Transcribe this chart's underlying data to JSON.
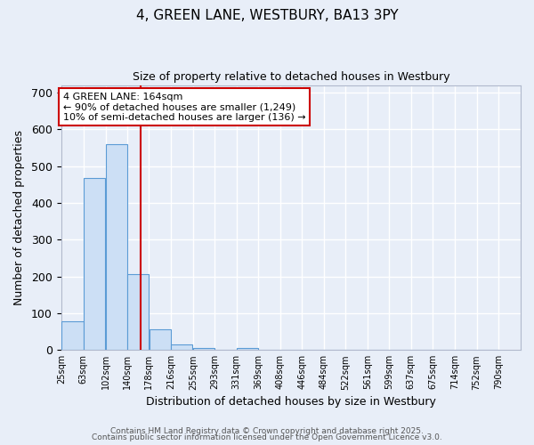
{
  "title": "4, GREEN LANE, WESTBURY, BA13 3PY",
  "subtitle": "Size of property relative to detached houses in Westbury",
  "xlabel": "Distribution of detached houses by size in Westbury",
  "ylabel": "Number of detached properties",
  "bar_color": "#ccdff5",
  "bar_edge_color": "#5b9bd5",
  "bins": [
    25,
    63,
    102,
    140,
    178,
    216,
    255,
    293,
    331,
    369,
    408,
    446,
    484,
    522,
    561,
    599,
    637,
    675,
    714,
    752,
    790
  ],
  "counts": [
    78,
    467,
    560,
    207,
    55,
    15,
    5,
    0,
    5,
    0,
    0,
    0,
    0,
    0,
    0,
    0,
    0,
    0,
    0,
    0,
    0
  ],
  "ylim": [
    0,
    720
  ],
  "yticks": [
    0,
    100,
    200,
    300,
    400,
    500,
    600,
    700
  ],
  "property_size": 164,
  "annotation_title": "4 GREEN LANE: 164sqm",
  "annotation_line1": "← 90% of detached houses are smaller (1,249)",
  "annotation_line2": "10% of semi-detached houses are larger (136) →",
  "vline_color": "#cc0000",
  "annotation_box_edgecolor": "#cc0000",
  "background_color": "#e8eef8",
  "footer1": "Contains HM Land Registry data © Crown copyright and database right 2025.",
  "footer2": "Contains public sector information licensed under the Open Government Licence v3.0.",
  "grid_color": "#ffffff",
  "tick_labels": [
    "25sqm",
    "63sqm",
    "102sqm",
    "140sqm",
    "178sqm",
    "216sqm",
    "255sqm",
    "293sqm",
    "331sqm",
    "369sqm",
    "408sqm",
    "446sqm",
    "484sqm",
    "522sqm",
    "561sqm",
    "599sqm",
    "637sqm",
    "675sqm",
    "714sqm",
    "752sqm",
    "790sqm"
  ]
}
